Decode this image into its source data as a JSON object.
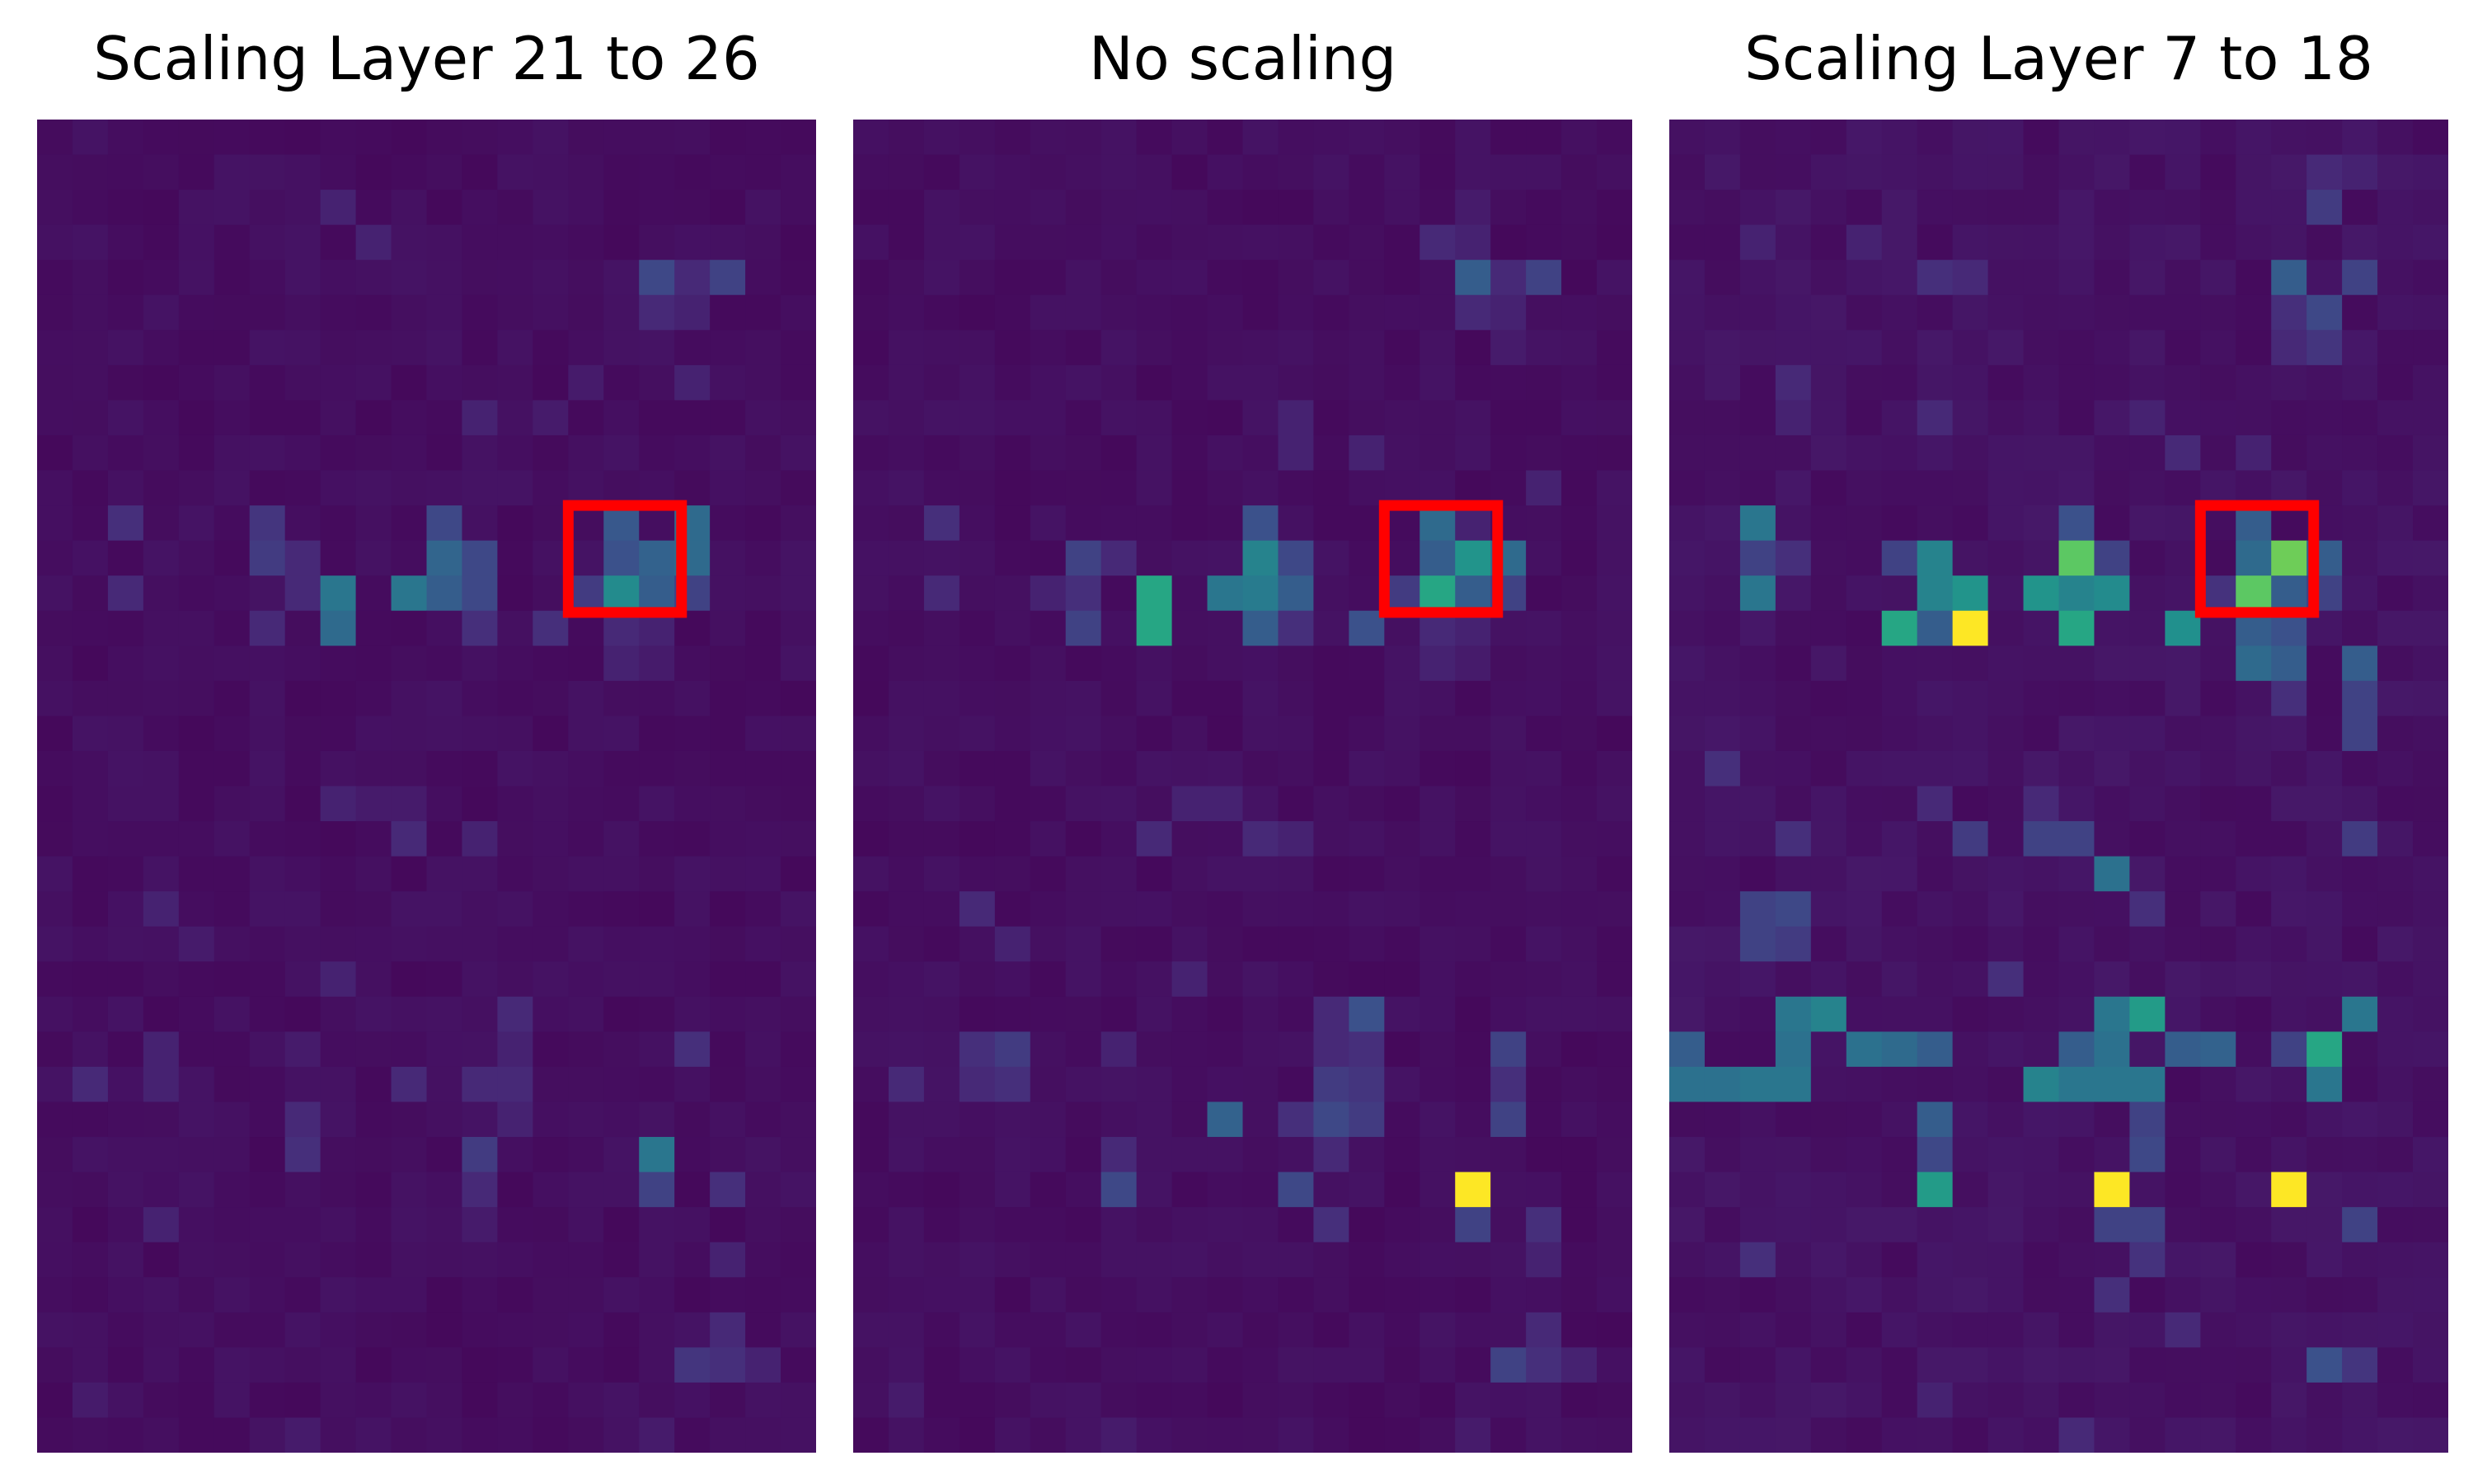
{
  "chart_data": [
    {
      "type": "heatmap",
      "title": "Scaling Layer 21 to 26",
      "rows": 38,
      "cols": 22,
      "colormap": "viridis",
      "range": [
        0,
        1
      ],
      "highlight_box": {
        "row_start": 11,
        "row_end": 14,
        "col_start": 15,
        "col_end": 18
      },
      "base": 0.04,
      "cells": [
        [
          2,
          8,
          0.1
        ],
        [
          3,
          9,
          0.1
        ],
        [
          4,
          17,
          0.22
        ],
        [
          4,
          18,
          0.12
        ],
        [
          4,
          19,
          0.2
        ],
        [
          5,
          17,
          0.12
        ],
        [
          5,
          18,
          0.1
        ],
        [
          7,
          15,
          0.08
        ],
        [
          7,
          18,
          0.1
        ],
        [
          8,
          12,
          0.1
        ],
        [
          8,
          14,
          0.08
        ],
        [
          11,
          2,
          0.14
        ],
        [
          11,
          6,
          0.16
        ],
        [
          11,
          11,
          0.22
        ],
        [
          11,
          16,
          0.28
        ],
        [
          11,
          18,
          0.35
        ],
        [
          12,
          6,
          0.18
        ],
        [
          12,
          7,
          0.12
        ],
        [
          12,
          11,
          0.33
        ],
        [
          12,
          12,
          0.22
        ],
        [
          12,
          16,
          0.25
        ],
        [
          12,
          17,
          0.32
        ],
        [
          12,
          18,
          0.35
        ],
        [
          13,
          2,
          0.12
        ],
        [
          13,
          7,
          0.12
        ],
        [
          13,
          8,
          0.4
        ],
        [
          13,
          10,
          0.4
        ],
        [
          13,
          11,
          0.3
        ],
        [
          13,
          12,
          0.22
        ],
        [
          13,
          15,
          0.18
        ],
        [
          13,
          16,
          0.48
        ],
        [
          13,
          17,
          0.3
        ],
        [
          13,
          18,
          0.2
        ],
        [
          14,
          6,
          0.12
        ],
        [
          14,
          8,
          0.35
        ],
        [
          14,
          12,
          0.14
        ],
        [
          14,
          14,
          0.14
        ],
        [
          14,
          16,
          0.12
        ],
        [
          14,
          17,
          0.1
        ],
        [
          15,
          16,
          0.1
        ],
        [
          15,
          17,
          0.08
        ],
        [
          19,
          8,
          0.1
        ],
        [
          19,
          9,
          0.08
        ],
        [
          19,
          10,
          0.08
        ],
        [
          20,
          10,
          0.12
        ],
        [
          20,
          12,
          0.1
        ],
        [
          22,
          3,
          0.1
        ],
        [
          23,
          4,
          0.08
        ],
        [
          24,
          8,
          0.1
        ],
        [
          25,
          13,
          0.12
        ],
        [
          26,
          3,
          0.1
        ],
        [
          26,
          7,
          0.08
        ],
        [
          26,
          13,
          0.1
        ],
        [
          26,
          18,
          0.14
        ],
        [
          27,
          1,
          0.12
        ],
        [
          27,
          3,
          0.1
        ],
        [
          27,
          10,
          0.12
        ],
        [
          27,
          12,
          0.12
        ],
        [
          27,
          13,
          0.12
        ],
        [
          28,
          7,
          0.12
        ],
        [
          28,
          13,
          0.1
        ],
        [
          29,
          7,
          0.14
        ],
        [
          29,
          12,
          0.18
        ],
        [
          29,
          17,
          0.4
        ],
        [
          30,
          12,
          0.12
        ],
        [
          30,
          17,
          0.2
        ],
        [
          30,
          19,
          0.14
        ],
        [
          31,
          3,
          0.1
        ],
        [
          31,
          12,
          0.08
        ],
        [
          32,
          19,
          0.1
        ],
        [
          34,
          19,
          0.12
        ],
        [
          35,
          18,
          0.16
        ],
        [
          35,
          19,
          0.14
        ],
        [
          35,
          20,
          0.1
        ],
        [
          36,
          1,
          0.08
        ],
        [
          37,
          7,
          0.08
        ],
        [
          37,
          17,
          0.08
        ]
      ]
    },
    {
      "type": "heatmap",
      "title": "No scaling",
      "rows": 38,
      "cols": 22,
      "colormap": "viridis",
      "range": [
        0,
        1
      ],
      "highlight_box": {
        "row_start": 11,
        "row_end": 14,
        "col_start": 15,
        "col_end": 18
      },
      "base": 0.04,
      "cells": [
        [
          2,
          17,
          0.08
        ],
        [
          3,
          16,
          0.12
        ],
        [
          3,
          17,
          0.1
        ],
        [
          4,
          17,
          0.3
        ],
        [
          4,
          18,
          0.12
        ],
        [
          4,
          19,
          0.2
        ],
        [
          5,
          17,
          0.12
        ],
        [
          5,
          18,
          0.1
        ],
        [
          6,
          18,
          0.08
        ],
        [
          8,
          12,
          0.1
        ],
        [
          9,
          12,
          0.1
        ],
        [
          9,
          14,
          0.1
        ],
        [
          10,
          19,
          0.1
        ],
        [
          11,
          2,
          0.14
        ],
        [
          11,
          11,
          0.25
        ],
        [
          11,
          16,
          0.35
        ],
        [
          11,
          17,
          0.1
        ],
        [
          12,
          6,
          0.2
        ],
        [
          12,
          7,
          0.12
        ],
        [
          12,
          11,
          0.45
        ],
        [
          12,
          12,
          0.22
        ],
        [
          12,
          16,
          0.3
        ],
        [
          12,
          17,
          0.52
        ],
        [
          12,
          18,
          0.35
        ],
        [
          13,
          2,
          0.12
        ],
        [
          13,
          5,
          0.1
        ],
        [
          13,
          6,
          0.14
        ],
        [
          13,
          8,
          0.6
        ],
        [
          13,
          10,
          0.4
        ],
        [
          13,
          11,
          0.42
        ],
        [
          13,
          12,
          0.3
        ],
        [
          13,
          15,
          0.18
        ],
        [
          13,
          16,
          0.6
        ],
        [
          13,
          17,
          0.3
        ],
        [
          13,
          18,
          0.2
        ],
        [
          14,
          6,
          0.2
        ],
        [
          14,
          8,
          0.6
        ],
        [
          14,
          11,
          0.3
        ],
        [
          14,
          12,
          0.14
        ],
        [
          14,
          14,
          0.25
        ],
        [
          14,
          16,
          0.12
        ],
        [
          14,
          17,
          0.1
        ],
        [
          15,
          16,
          0.1
        ],
        [
          15,
          17,
          0.08
        ],
        [
          19,
          9,
          0.1
        ],
        [
          19,
          10,
          0.1
        ],
        [
          20,
          8,
          0.12
        ],
        [
          20,
          11,
          0.12
        ],
        [
          20,
          12,
          0.1
        ],
        [
          22,
          3,
          0.12
        ],
        [
          23,
          4,
          0.1
        ],
        [
          24,
          9,
          0.1
        ],
        [
          25,
          13,
          0.12
        ],
        [
          25,
          14,
          0.25
        ],
        [
          26,
          3,
          0.14
        ],
        [
          26,
          4,
          0.18
        ],
        [
          26,
          7,
          0.1
        ],
        [
          26,
          13,
          0.12
        ],
        [
          26,
          14,
          0.14
        ],
        [
          26,
          18,
          0.2
        ],
        [
          27,
          1,
          0.12
        ],
        [
          27,
          3,
          0.12
        ],
        [
          27,
          4,
          0.14
        ],
        [
          27,
          13,
          0.18
        ],
        [
          27,
          14,
          0.16
        ],
        [
          27,
          18,
          0.14
        ],
        [
          28,
          10,
          0.32
        ],
        [
          28,
          12,
          0.14
        ],
        [
          28,
          13,
          0.22
        ],
        [
          28,
          14,
          0.18
        ],
        [
          28,
          18,
          0.2
        ],
        [
          29,
          7,
          0.12
        ],
        [
          29,
          13,
          0.12
        ],
        [
          30,
          7,
          0.22
        ],
        [
          30,
          12,
          0.22
        ],
        [
          30,
          17,
          1.0
        ],
        [
          31,
          13,
          0.14
        ],
        [
          31,
          17,
          0.2
        ],
        [
          31,
          19,
          0.14
        ],
        [
          32,
          19,
          0.1
        ],
        [
          34,
          19,
          0.12
        ],
        [
          35,
          18,
          0.2
        ],
        [
          35,
          19,
          0.14
        ],
        [
          35,
          20,
          0.1
        ],
        [
          36,
          1,
          0.08
        ],
        [
          37,
          7,
          0.08
        ],
        [
          37,
          17,
          0.08
        ]
      ]
    },
    {
      "type": "heatmap",
      "title": "Scaling Layer 7 to 18",
      "rows": 38,
      "cols": 22,
      "colormap": "viridis",
      "range": [
        0,
        1
      ],
      "highlight_box": {
        "row_start": 11,
        "row_end": 14,
        "col_start": 15,
        "col_end": 18
      },
      "base": 0.05,
      "cells": [
        [
          1,
          18,
          0.12
        ],
        [
          1,
          19,
          0.1
        ],
        [
          2,
          18,
          0.18
        ],
        [
          3,
          2,
          0.1
        ],
        [
          3,
          5,
          0.1
        ],
        [
          4,
          7,
          0.14
        ],
        [
          4,
          8,
          0.12
        ],
        [
          4,
          17,
          0.3
        ],
        [
          4,
          19,
          0.2
        ],
        [
          5,
          17,
          0.14
        ],
        [
          5,
          18,
          0.22
        ],
        [
          6,
          17,
          0.12
        ],
        [
          6,
          18,
          0.16
        ],
        [
          7,
          3,
          0.12
        ],
        [
          8,
          3,
          0.1
        ],
        [
          8,
          7,
          0.12
        ],
        [
          8,
          13,
          0.1
        ],
        [
          9,
          14,
          0.12
        ],
        [
          9,
          16,
          0.1
        ],
        [
          11,
          2,
          0.4
        ],
        [
          11,
          16,
          0.3
        ],
        [
          11,
          11,
          0.25
        ],
        [
          12,
          2,
          0.2
        ],
        [
          12,
          3,
          0.14
        ],
        [
          12,
          6,
          0.2
        ],
        [
          12,
          7,
          0.45
        ],
        [
          12,
          11,
          0.75
        ],
        [
          12,
          12,
          0.2
        ],
        [
          12,
          16,
          0.35
        ],
        [
          12,
          17,
          0.78
        ],
        [
          12,
          18,
          0.3
        ],
        [
          13,
          2,
          0.4
        ],
        [
          13,
          7,
          0.45
        ],
        [
          13,
          8,
          0.52
        ],
        [
          13,
          10,
          0.52
        ],
        [
          13,
          11,
          0.45
        ],
        [
          13,
          12,
          0.48
        ],
        [
          13,
          15,
          0.15
        ],
        [
          13,
          16,
          0.75
        ],
        [
          13,
          17,
          0.3
        ],
        [
          13,
          18,
          0.2
        ],
        [
          14,
          6,
          0.6
        ],
        [
          14,
          7,
          0.3
        ],
        [
          14,
          8,
          1.0
        ],
        [
          14,
          11,
          0.6
        ],
        [
          14,
          14,
          0.5
        ],
        [
          14,
          16,
          0.3
        ],
        [
          14,
          17,
          0.25
        ],
        [
          15,
          16,
          0.35
        ],
        [
          15,
          17,
          0.3
        ],
        [
          15,
          19,
          0.3
        ],
        [
          16,
          17,
          0.14
        ],
        [
          16,
          19,
          0.2
        ],
        [
          17,
          19,
          0.2
        ],
        [
          18,
          1,
          0.14
        ],
        [
          19,
          7,
          0.12
        ],
        [
          19,
          10,
          0.12
        ],
        [
          20,
          3,
          0.14
        ],
        [
          20,
          8,
          0.18
        ],
        [
          20,
          10,
          0.2
        ],
        [
          20,
          11,
          0.2
        ],
        [
          20,
          19,
          0.18
        ],
        [
          21,
          12,
          0.38
        ],
        [
          22,
          2,
          0.2
        ],
        [
          22,
          3,
          0.22
        ],
        [
          22,
          13,
          0.14
        ],
        [
          23,
          2,
          0.2
        ],
        [
          23,
          3,
          0.18
        ],
        [
          24,
          9,
          0.14
        ],
        [
          25,
          3,
          0.4
        ],
        [
          25,
          4,
          0.45
        ],
        [
          25,
          12,
          0.4
        ],
        [
          25,
          13,
          0.55
        ],
        [
          25,
          19,
          0.4
        ],
        [
          26,
          0,
          0.3
        ],
        [
          26,
          3,
          0.38
        ],
        [
          26,
          5,
          0.38
        ],
        [
          26,
          6,
          0.35
        ],
        [
          26,
          7,
          0.3
        ],
        [
          26,
          11,
          0.3
        ],
        [
          26,
          12,
          0.38
        ],
        [
          26,
          14,
          0.3
        ],
        [
          26,
          15,
          0.32
        ],
        [
          26,
          17,
          0.2
        ],
        [
          26,
          18,
          0.6
        ],
        [
          27,
          0,
          0.38
        ],
        [
          27,
          1,
          0.38
        ],
        [
          27,
          2,
          0.4
        ],
        [
          27,
          3,
          0.4
        ],
        [
          27,
          10,
          0.45
        ],
        [
          27,
          11,
          0.4
        ],
        [
          27,
          12,
          0.4
        ],
        [
          27,
          13,
          0.4
        ],
        [
          27,
          18,
          0.4
        ],
        [
          28,
          7,
          0.3
        ],
        [
          28,
          13,
          0.2
        ],
        [
          29,
          7,
          0.22
        ],
        [
          29,
          13,
          0.22
        ],
        [
          30,
          7,
          0.55
        ],
        [
          30,
          12,
          1.0
        ],
        [
          30,
          17,
          1.0
        ],
        [
          31,
          12,
          0.2
        ],
        [
          31,
          13,
          0.2
        ],
        [
          31,
          19,
          0.2
        ],
        [
          32,
          2,
          0.14
        ],
        [
          32,
          13,
          0.15
        ],
        [
          33,
          12,
          0.14
        ],
        [
          34,
          14,
          0.12
        ],
        [
          35,
          18,
          0.25
        ],
        [
          35,
          19,
          0.16
        ],
        [
          36,
          7,
          0.1
        ],
        [
          37,
          11,
          0.12
        ]
      ]
    }
  ]
}
